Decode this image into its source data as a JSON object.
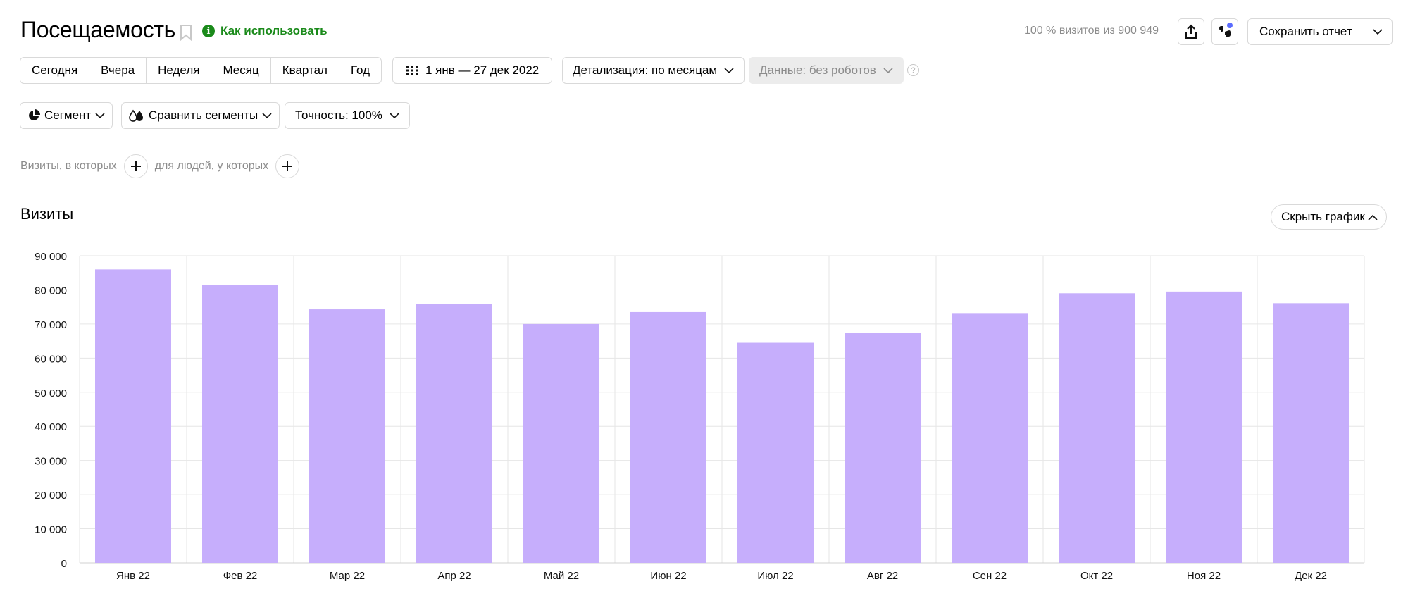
{
  "header": {
    "title": "Посещаемость",
    "help_link": "Как использовать",
    "visits_summary": "100 % визитов из 900 949",
    "save_label": "Сохранить отчет"
  },
  "toolbar": {
    "periods": [
      "Сегодня",
      "Вчера",
      "Неделя",
      "Месяц",
      "Квартал",
      "Год"
    ],
    "date_range": "1 янв — 27 дек 2022",
    "detail": "Детализация: по месяцам",
    "data_filter": "Данные: без роботов",
    "segment": "Сегмент",
    "compare_segments": "Сравнить сегменты",
    "accuracy": "Точность: 100%"
  },
  "filters": {
    "visits_label": "Визиты, в которых",
    "people_label": "для людей, у которых"
  },
  "section": {
    "title": "Визиты",
    "hide_chart": "Скрыть график"
  },
  "icons": [
    "bookmark-icon",
    "info-icon",
    "share-icon",
    "ai-assistant-icon",
    "chevron-down-icon",
    "calendar-grid-icon",
    "question-icon",
    "pie-segment-icon",
    "compare-drops-icon",
    "plus-icon",
    "chevron-up-icon"
  ],
  "colors": {
    "accent_green": "#1a8a1a",
    "bar": "#c6aefc",
    "grid": "#e6e6e6"
  },
  "chart_data": {
    "type": "bar",
    "categories": [
      "Янв 22",
      "Фев 22",
      "Мар 22",
      "Апр 22",
      "Май 22",
      "Июн 22",
      "Июл 22",
      "Авг 22",
      "Сен 22",
      "Окт 22",
      "Ноя 22",
      "Дек 22"
    ],
    "values": [
      86000,
      81500,
      74300,
      75900,
      70000,
      73500,
      64500,
      67400,
      73000,
      79000,
      79500,
      76100
    ],
    "yticks": [
      "0",
      "10 000",
      "20 000",
      "30 000",
      "40 000",
      "50 000",
      "60 000",
      "70 000",
      "80 000",
      "90 000"
    ],
    "ylim": [
      0,
      90000
    ],
    "grid": true,
    "legend": "none"
  }
}
